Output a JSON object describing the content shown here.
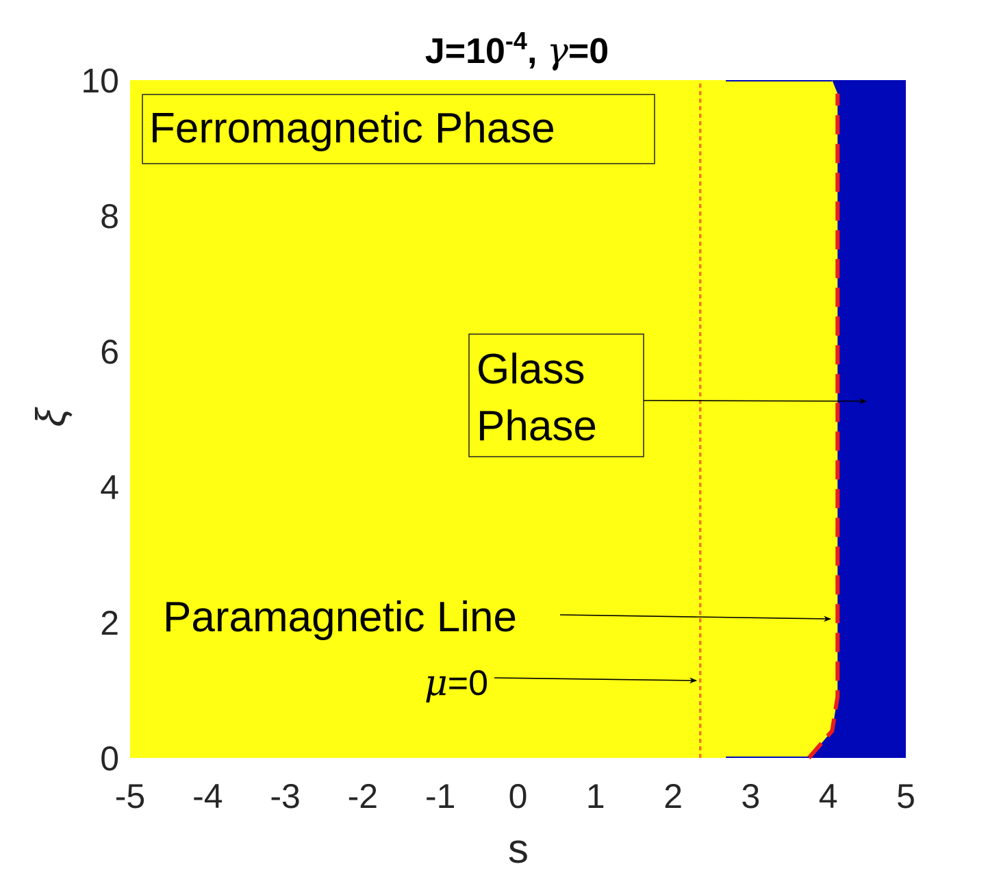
{
  "chart_data": {
    "type": "heatmap",
    "title": {
      "prefix": "J=10",
      "exponent": "-4",
      "mid": ", ",
      "gamma_symbol": "γ",
      "suffix": "=0"
    },
    "xlabel": "s",
    "ylabel": "ξ",
    "xlim": [
      -5,
      5
    ],
    "ylim": [
      0,
      10
    ],
    "xticks": [
      -5,
      -4,
      -3,
      -2,
      -1,
      0,
      1,
      2,
      3,
      4,
      5
    ],
    "yticks": [
      0,
      2,
      4,
      6,
      8,
      10
    ],
    "grid": false,
    "colors": {
      "ferromagnetic": "#ffff14",
      "glass": "#0008b8",
      "paramagnetic_line": "#e81e1e",
      "mu_zero_line": "#f07a23",
      "axis_text": "#262626"
    },
    "regions": [
      {
        "name": "ferromagnetic",
        "description": "s below the glass boundary"
      },
      {
        "name": "glass",
        "boundary": [
          [
            2.68,
            10
          ],
          [
            4.05,
            10
          ],
          [
            4.12,
            9.8
          ],
          [
            4.12,
            0.4
          ],
          [
            4.02,
            0.4
          ],
          [
            3.95,
            0.2
          ],
          [
            3.82,
            0.1
          ],
          [
            3.75,
            0.0
          ],
          [
            2.68,
            0.0
          ]
        ],
        "boundary_note": "strip between s=2.68 and the paramagnetic line is yellow; glass phase is s > paramagnetic line"
      }
    ],
    "lines": [
      {
        "name": "paramagnetic_line",
        "style": "dashed",
        "points": [
          [
            3.75,
            0.0
          ],
          [
            4.05,
            0.4
          ],
          [
            4.12,
            0.9
          ],
          [
            4.12,
            9.8
          ]
        ]
      },
      {
        "name": "mu_zero",
        "style": "dotted",
        "points": [
          [
            2.35,
            0.0
          ],
          [
            2.35,
            10.0
          ]
        ]
      }
    ],
    "annotations": [
      {
        "text": "Ferromagnetic Phase",
        "boxed": true
      },
      {
        "text_lines": [
          "Glass",
          "Phase"
        ],
        "boxed": true,
        "arrow_to": [
          4.5,
          5.25
        ]
      },
      {
        "text": "Paramagnetic Line",
        "boxed": false,
        "arrow_to": [
          4.1,
          2.05
        ]
      },
      {
        "text_symbol": "μ",
        "text_suffix": "=0",
        "boxed": false,
        "arrow_to": [
          2.32,
          1.15
        ]
      }
    ]
  }
}
